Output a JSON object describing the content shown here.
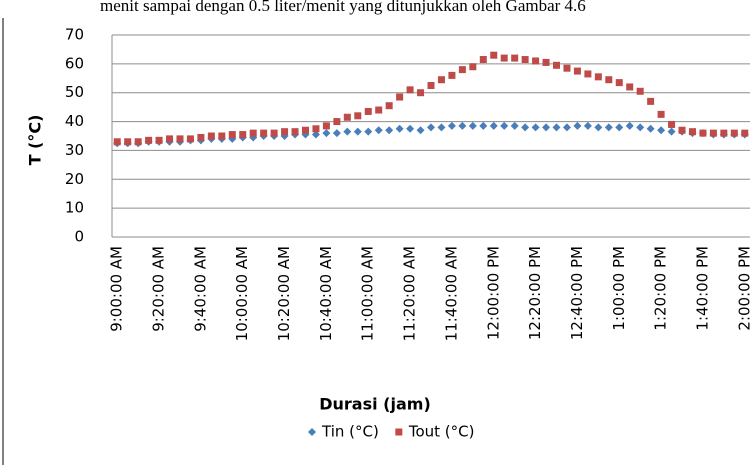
{
  "context_text": "menit sampai dengan 0.5 liter/menit yang ditunjukkan oleh Gambar 4.6",
  "chart_data": {
    "type": "scatter",
    "x_label": "Durasi (jam)",
    "y_label": "T (°C)",
    "categories": [
      "9:00:00 AM",
      null,
      null,
      null,
      "9:20:00 AM",
      null,
      null,
      null,
      "9:40:00 AM",
      null,
      null,
      null,
      "10:00:00 AM",
      null,
      null,
      null,
      "10:20:00 AM",
      null,
      null,
      null,
      "10:40:00 AM",
      null,
      null,
      null,
      "11:00:00 AM",
      null,
      null,
      null,
      "11:20:00 AM",
      null,
      null,
      null,
      "11:40:00 AM",
      null,
      null,
      null,
      "12:00:00 PM",
      null,
      null,
      null,
      "12:20:00 PM",
      null,
      null,
      null,
      "12:40:00 PM",
      null,
      null,
      null,
      "1:00:00 PM",
      null,
      null,
      null,
      "1:20:00 PM",
      null,
      null,
      null,
      "1:40:00 PM",
      null,
      null,
      null,
      "2:00:00 PM"
    ],
    "series": [
      {
        "name": "Tin (°C)",
        "color": "#4a7ebb",
        "marker": "diamond",
        "values": [
          32.5,
          32.5,
          32.5,
          33,
          33,
          33,
          33,
          33.5,
          33.5,
          34,
          34,
          34,
          34.5,
          34.5,
          35,
          35,
          35,
          35.5,
          35.5,
          35.5,
          36,
          36,
          36.5,
          36.5,
          36.5,
          37,
          37,
          37.5,
          37.5,
          37,
          38,
          38,
          38.5,
          38.5,
          38.5,
          38.5,
          38.5,
          38.5,
          38.5,
          38,
          38,
          38,
          38,
          38,
          38.5,
          38.5,
          38,
          38,
          38,
          38.5,
          38,
          37.5,
          37,
          36.5,
          36.5,
          36,
          36,
          35.5,
          35.5,
          35.5,
          35.5
        ]
      },
      {
        "name": "Tout (°C)",
        "color": "#be4b48",
        "marker": "square",
        "values": [
          33,
          33,
          33,
          33.5,
          33.5,
          34,
          34,
          34,
          34.5,
          35,
          35,
          35.5,
          35.5,
          36,
          36,
          36,
          36.5,
          36.5,
          37,
          37.5,
          38.5,
          40,
          41.5,
          42,
          43.5,
          44,
          45.5,
          48.5,
          51,
          50,
          52.5,
          54.5,
          56,
          58,
          59,
          61.5,
          63,
          62,
          62,
          61.5,
          61,
          60.5,
          59.5,
          58.5,
          57.5,
          56.5,
          55.5,
          54.5,
          53.5,
          52,
          50.5,
          47,
          42.5,
          39,
          37,
          36.5,
          36,
          36,
          36,
          36,
          36
        ]
      }
    ],
    "ylim": [
      0,
      70
    ],
    "yticks": [
      0,
      10,
      20,
      30,
      40,
      50,
      60,
      70
    ],
    "grid": true,
    "legend": "bottom"
  }
}
